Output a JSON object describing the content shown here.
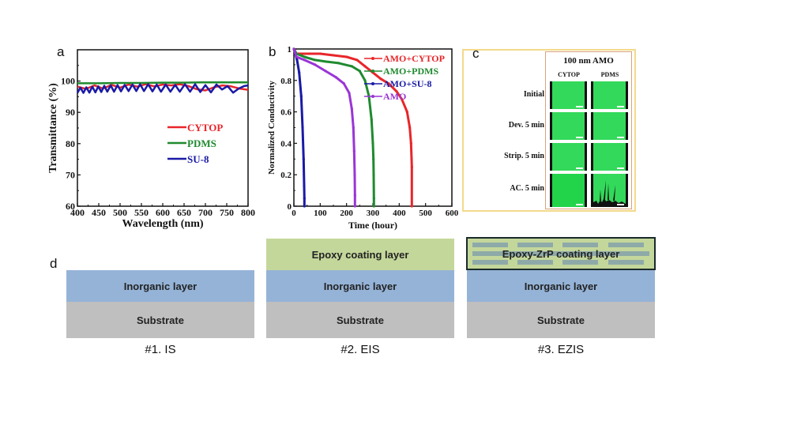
{
  "panels": {
    "a": "a",
    "b": "b",
    "c": "c",
    "d": "d"
  },
  "colors": {
    "red": "#e8262a",
    "green": "#1f8a2e",
    "blue": "#1a1aa6",
    "purple": "#9a35d6",
    "inorganic": "#95b3d7",
    "substrate": "#bfbfbf",
    "epoxy": "#c4d79b",
    "zrp_flake": "#8eaaa8",
    "cell_green": "#33d95a"
  },
  "chart_data": [
    {
      "type": "line",
      "panel": "a",
      "title": "",
      "xlabel": "Wavelength (nm)",
      "ylabel": "Transmittance (%)",
      "xlim": [
        400,
        800
      ],
      "ylim": [
        60,
        110
      ],
      "xticks": [
        "400",
        "450",
        "500",
        "550",
        "600",
        "650",
        "700",
        "750",
        "800"
      ],
      "yticks": [
        "60",
        "70",
        "80",
        "90",
        "100"
      ],
      "legend_placement": "center",
      "series": [
        {
          "name": "CYTOP",
          "color": "#e8262a",
          "x": [
            400,
            420,
            440,
            460,
            480,
            500,
            520,
            540,
            560,
            580,
            600,
            620,
            640,
            660,
            680,
            700,
            720,
            740,
            760,
            780,
            800
          ],
          "y": [
            98.2,
            97.5,
            98.6,
            97.6,
            98.8,
            97.9,
            98.9,
            98.2,
            99.0,
            98.3,
            98.9,
            98.6,
            99.0,
            98.4,
            97.4,
            97.0,
            98.0,
            98.6,
            98.3,
            97.6,
            97.2
          ]
        },
        {
          "name": "PDMS",
          "color": "#1f8a2e",
          "x": [
            400,
            450,
            500,
            550,
            600,
            650,
            700,
            750,
            800
          ],
          "y": [
            99.3,
            99.3,
            99.4,
            99.4,
            99.5,
            99.5,
            99.6,
            99.6,
            99.6
          ]
        },
        {
          "name": "SU-8",
          "color": "#1a1aa6",
          "x": [
            400,
            407,
            414,
            421,
            428,
            435,
            442,
            449,
            456,
            463,
            470,
            478,
            486,
            494,
            502,
            511,
            520,
            529,
            538,
            547,
            556,
            566,
            576,
            586,
            596,
            607,
            618,
            629,
            640,
            652,
            664,
            676,
            688,
            700,
            713,
            726,
            739,
            752,
            765,
            778,
            791,
            800
          ],
          "y": [
            96.2,
            97.9,
            96.2,
            98.0,
            96.3,
            98.2,
            96.4,
            98.3,
            96.5,
            98.5,
            96.6,
            98.6,
            96.6,
            98.7,
            96.7,
            98.8,
            96.8,
            98.9,
            96.8,
            99.0,
            96.8,
            99.0,
            96.7,
            98.9,
            96.6,
            98.9,
            96.6,
            98.8,
            96.6,
            99.0,
            96.6,
            99.0,
            96.5,
            98.7,
            96.4,
            98.9,
            97.3,
            98.4,
            96.3,
            97.6,
            98.4,
            98.6
          ]
        }
      ]
    },
    {
      "type": "line",
      "panel": "b",
      "title": "",
      "xlabel": "Time (hour)",
      "ylabel": "Normalized Conductivity",
      "xlim": [
        0,
        600
      ],
      "ylim": [
        0,
        1
      ],
      "xticks": [
        "0",
        "100",
        "200",
        "300",
        "400",
        "500",
        "600"
      ],
      "yticks": [
        "0",
        "0.2",
        "0.4",
        "0.6",
        "0.8",
        "1"
      ],
      "legend_placement": "top-right",
      "series": [
        {
          "name": "AMO+CYTOP",
          "color": "#e8262a",
          "x": [
            0,
            10,
            30,
            60,
            100,
            150,
            200,
            240,
            270,
            300,
            330,
            360,
            390,
            410,
            430,
            440,
            445,
            447,
            448,
            448
          ],
          "y": [
            1.0,
            0.97,
            0.97,
            0.97,
            0.97,
            0.96,
            0.95,
            0.93,
            0.89,
            0.85,
            0.81,
            0.78,
            0.73,
            0.68,
            0.6,
            0.5,
            0.4,
            0.3,
            0.25,
            0.0
          ]
        },
        {
          "name": "AMO+PDMS",
          "color": "#1f8a2e",
          "x": [
            0,
            10,
            40,
            80,
            120,
            170,
            220,
            250,
            270,
            285,
            295,
            300,
            302,
            303,
            304,
            304
          ],
          "y": [
            1.0,
            0.97,
            0.95,
            0.93,
            0.92,
            0.91,
            0.89,
            0.86,
            0.8,
            0.7,
            0.55,
            0.4,
            0.3,
            0.2,
            0.05,
            0.0
          ]
        },
        {
          "name": "AMO+SU-8",
          "color": "#1a1aa6",
          "x": [
            0,
            5,
            12,
            20,
            28,
            33,
            37,
            39,
            40,
            40
          ],
          "y": [
            1.0,
            0.97,
            0.93,
            0.85,
            0.7,
            0.5,
            0.3,
            0.13,
            0.05,
            0.0
          ]
        },
        {
          "name": "AMO",
          "color": "#9a35d6",
          "x": [
            0,
            10,
            40,
            80,
            120,
            160,
            190,
            210,
            220,
            226,
            229,
            231,
            232,
            232
          ],
          "y": [
            1.0,
            0.95,
            0.93,
            0.9,
            0.86,
            0.82,
            0.78,
            0.72,
            0.62,
            0.5,
            0.35,
            0.2,
            0.07,
            0.0
          ]
        }
      ]
    }
  ],
  "panel_c": {
    "title": "100 nm AMO",
    "columns": [
      "CYTOP",
      "PDMS"
    ],
    "rows": [
      "Initial",
      "Dev. 5 min",
      "Strip. 5 min",
      "AC. 5 min"
    ]
  },
  "panel_d": {
    "structures": [
      {
        "caption": "#1. IS",
        "coating": "",
        "inorganic": "Inorganic layer",
        "substrate": "Substrate"
      },
      {
        "caption": "#2. EIS",
        "coating": "Epoxy coating layer",
        "inorganic": "Inorganic layer",
        "substrate": "Substrate"
      },
      {
        "caption": "#3. EZIS",
        "coating": "Epoxy-ZrP coating layer",
        "inorganic": "Inorganic layer",
        "substrate": "Substrate"
      }
    ]
  }
}
